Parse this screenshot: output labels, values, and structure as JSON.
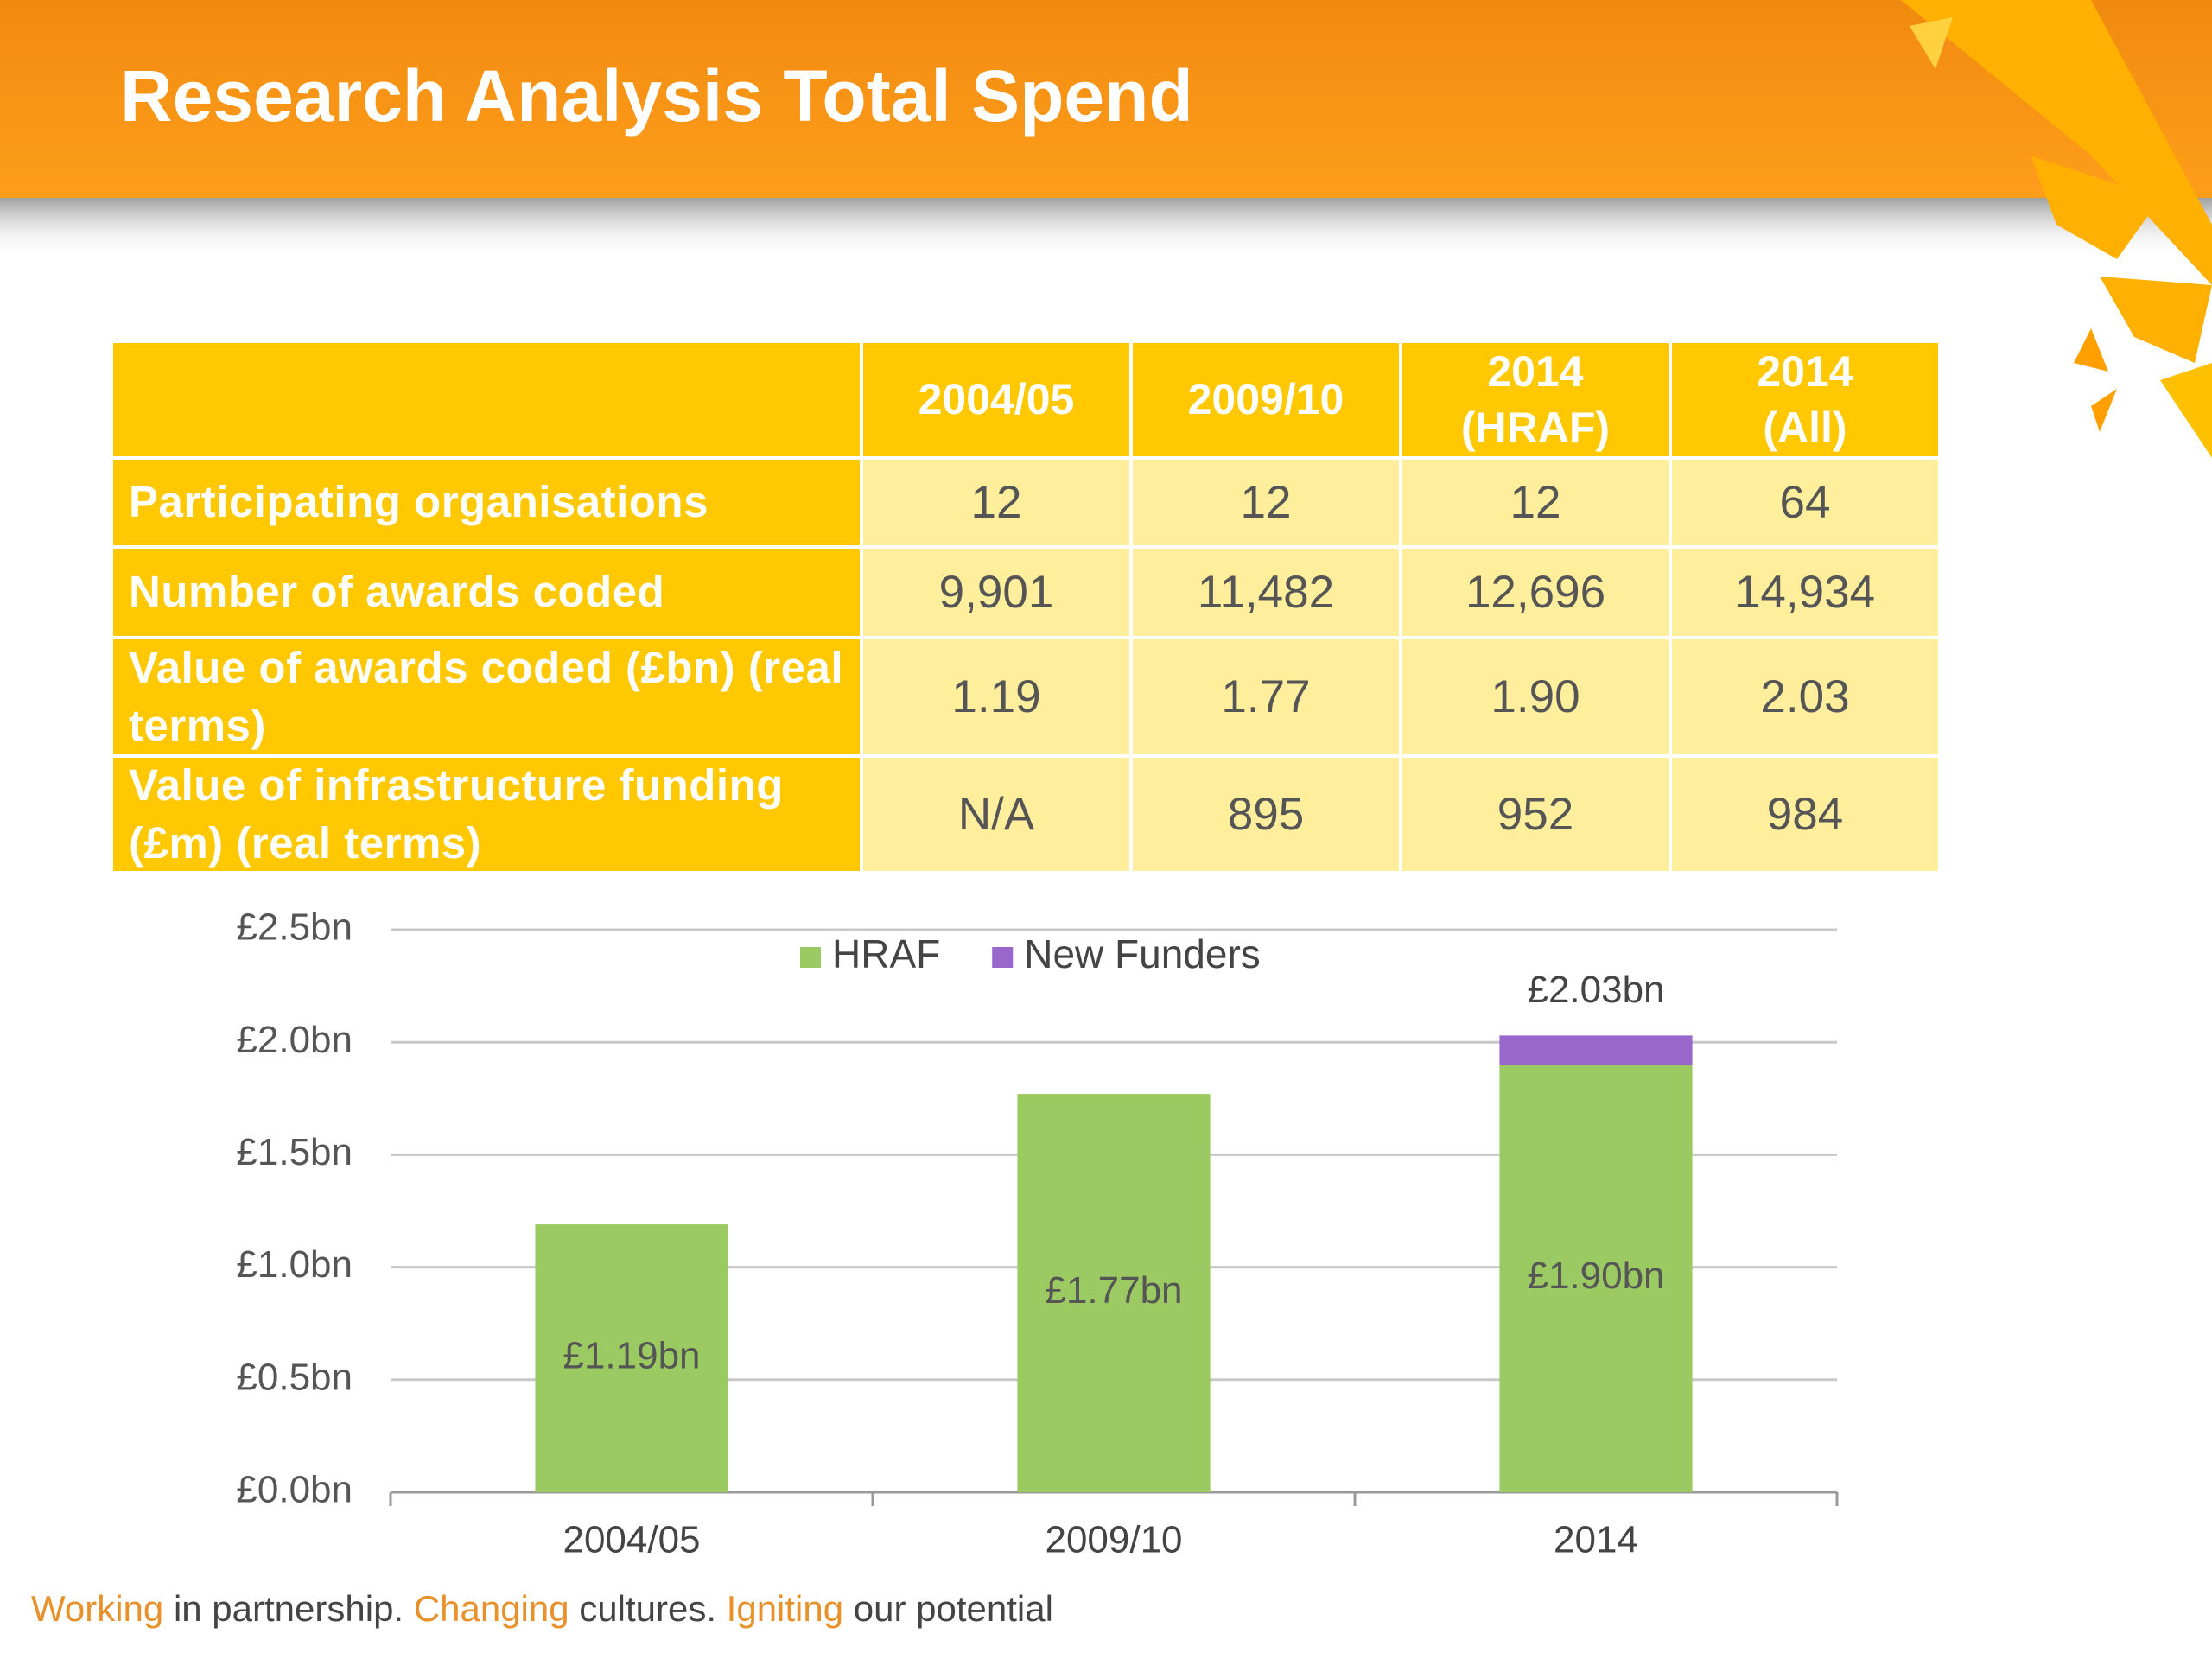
{
  "title": "Research Analysis Total Spend",
  "table": {
    "header": [
      "2004/05",
      "2009/10",
      "2014 (HRAF)",
      "2014 (All)"
    ],
    "rows": [
      [
        "Participating organisations",
        "12",
        "12",
        "12",
        "64"
      ],
      [
        "Number of awards coded",
        "9,901",
        "11,482",
        "12,696",
        "14,934"
      ],
      [
        "Value of awards coded (£bn) (real terms)",
        "1.19",
        "1.77",
        "1.90",
        "2.03"
      ],
      [
        "Value of infrastructure funding (£m) (real terms)",
        "N/A",
        "895",
        "952",
        "984"
      ]
    ]
  },
  "chart_data": {
    "type": "stacked_bar",
    "categories": [
      "2004/05",
      "2009/10",
      "2014"
    ],
    "series": [
      {
        "name": "HRAF",
        "color": "#9bca62",
        "values": [
          1.19,
          1.77,
          1.9
        ],
        "value_labels": [
          "£1.19bn",
          "£1.77bn",
          "£1.90bn"
        ]
      },
      {
        "name": "New Funders",
        "color": "#9966cc",
        "values": [
          null,
          null,
          0.13
        ]
      }
    ],
    "annotations": [
      {
        "x": "2014",
        "value": 2.03,
        "label": "£2.03bn"
      }
    ],
    "ylim": [
      0,
      2.5
    ],
    "yticks": [
      {
        "value": 0,
        "label": "£0.0bn"
      },
      {
        "value": 0.5,
        "label": "£0.5bn"
      },
      {
        "value": 1,
        "label": "£1.0bn"
      },
      {
        "value": 1.5,
        "label": "£1.5bn"
      },
      {
        "value": 2,
        "label": "£2.0bn"
      },
      {
        "value": 2.5,
        "label": "£2.5bn"
      }
    ],
    "grid": true,
    "legend": "top"
  },
  "footer": [
    "Working",
    " in partnership. ",
    "Changing",
    " cultures. ",
    "Igniting",
    " our potential"
  ]
}
